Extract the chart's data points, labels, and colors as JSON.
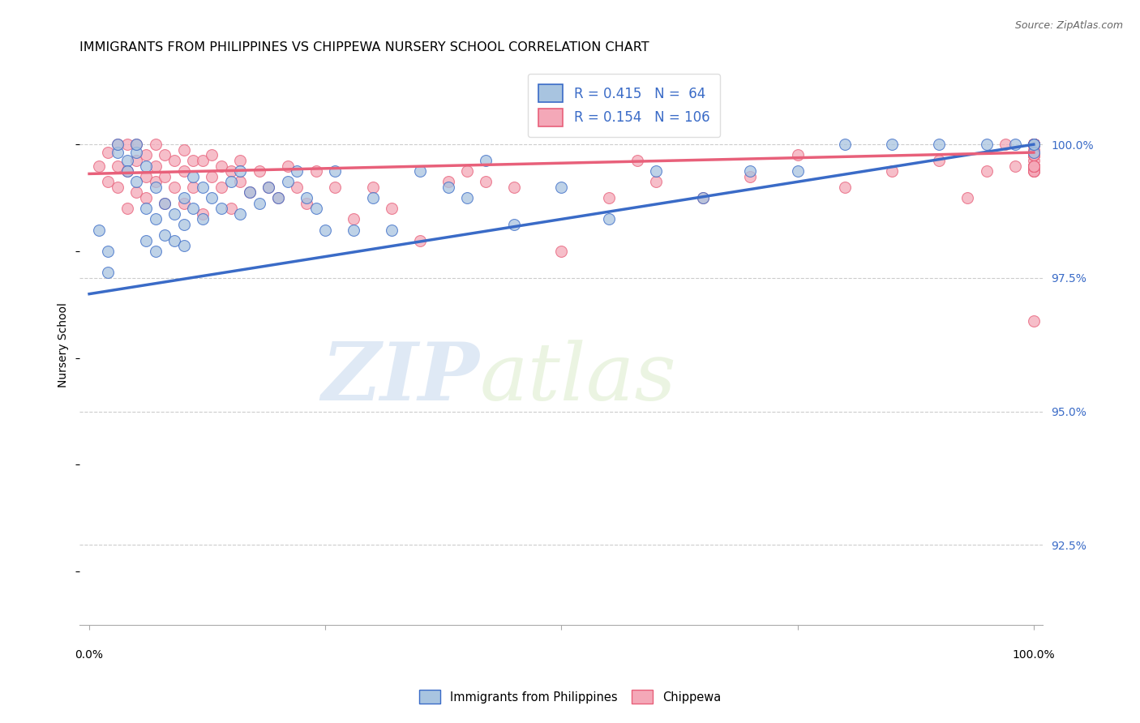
{
  "title": "IMMIGRANTS FROM PHILIPPINES VS CHIPPEWA NURSERY SCHOOL CORRELATION CHART",
  "source": "Source: ZipAtlas.com",
  "ylabel": "Nursery School",
  "legend_label1": "Immigrants from Philippines",
  "legend_label2": "Chippewa",
  "r1": 0.415,
  "n1": 64,
  "r2": 0.154,
  "n2": 106,
  "blue_color": "#a8c4e0",
  "pink_color": "#f4a8b8",
  "line_blue": "#3a6bc7",
  "line_pink": "#e8607a",
  "ytick_values": [
    92.5,
    95.0,
    97.5,
    100.0
  ],
  "ymin": 91.0,
  "ymax": 101.5,
  "xmin": -0.01,
  "xmax": 1.01,
  "blue_line_x0": 0.0,
  "blue_line_y0": 97.2,
  "blue_line_x1": 1.0,
  "blue_line_y1": 100.0,
  "pink_line_x0": 0.0,
  "pink_line_y0": 99.45,
  "pink_line_x1": 1.0,
  "pink_line_y1": 99.85,
  "blue_scatter_x": [
    0.01,
    0.02,
    0.02,
    0.03,
    0.03,
    0.04,
    0.04,
    0.05,
    0.05,
    0.05,
    0.06,
    0.06,
    0.06,
    0.07,
    0.07,
    0.07,
    0.08,
    0.08,
    0.09,
    0.09,
    0.1,
    0.1,
    0.1,
    0.11,
    0.11,
    0.12,
    0.12,
    0.13,
    0.14,
    0.15,
    0.16,
    0.16,
    0.17,
    0.18,
    0.19,
    0.2,
    0.21,
    0.22,
    0.23,
    0.24,
    0.25,
    0.26,
    0.28,
    0.3,
    0.32,
    0.35,
    0.38,
    0.4,
    0.42,
    0.45,
    0.5,
    0.55,
    0.6,
    0.65,
    0.7,
    0.75,
    0.8,
    0.85,
    0.9,
    0.95,
    0.98,
    1.0,
    1.0,
    1.0
  ],
  "blue_scatter_y": [
    98.4,
    98.0,
    97.6,
    99.85,
    100.0,
    99.7,
    99.5,
    99.85,
    100.0,
    99.3,
    99.6,
    98.8,
    98.2,
    99.2,
    98.6,
    98.0,
    98.9,
    98.3,
    98.7,
    98.2,
    99.0,
    98.5,
    98.1,
    99.4,
    98.8,
    99.2,
    98.6,
    99.0,
    98.8,
    99.3,
    99.5,
    98.7,
    99.1,
    98.9,
    99.2,
    99.0,
    99.3,
    99.5,
    99.0,
    98.8,
    98.4,
    99.5,
    98.4,
    99.0,
    98.4,
    99.5,
    99.2,
    99.0,
    99.7,
    98.5,
    99.2,
    98.6,
    99.5,
    99.0,
    99.5,
    99.5,
    100.0,
    100.0,
    100.0,
    100.0,
    100.0,
    100.0,
    99.85,
    100.0
  ],
  "pink_scatter_x": [
    0.01,
    0.02,
    0.02,
    0.03,
    0.03,
    0.03,
    0.04,
    0.04,
    0.04,
    0.05,
    0.05,
    0.05,
    0.06,
    0.06,
    0.06,
    0.07,
    0.07,
    0.07,
    0.08,
    0.08,
    0.08,
    0.09,
    0.09,
    0.1,
    0.1,
    0.1,
    0.11,
    0.11,
    0.12,
    0.12,
    0.13,
    0.13,
    0.14,
    0.14,
    0.15,
    0.15,
    0.16,
    0.16,
    0.17,
    0.18,
    0.19,
    0.2,
    0.21,
    0.22,
    0.23,
    0.24,
    0.26,
    0.28,
    0.3,
    0.32,
    0.35,
    0.38,
    0.4,
    0.42,
    0.45,
    0.5,
    0.55,
    0.58,
    0.6,
    0.65,
    0.7,
    0.75,
    0.8,
    0.85,
    0.9,
    0.93,
    0.95,
    0.97,
    0.98,
    1.0,
    1.0,
    1.0,
    1.0,
    1.0,
    1.0,
    1.0,
    1.0,
    1.0,
    1.0,
    1.0,
    1.0,
    1.0,
    1.0,
    1.0,
    1.0,
    1.0,
    1.0,
    1.0,
    1.0,
    1.0,
    1.0,
    1.0,
    1.0,
    1.0,
    1.0,
    1.0,
    1.0,
    1.0,
    1.0,
    1.0,
    1.0,
    1.0,
    1.0,
    1.0,
    1.0,
    1.0
  ],
  "pink_scatter_y": [
    99.6,
    99.85,
    99.3,
    100.0,
    99.6,
    99.2,
    100.0,
    99.5,
    98.8,
    99.7,
    100.0,
    99.1,
    99.4,
    99.8,
    99.0,
    99.6,
    100.0,
    99.3,
    99.8,
    99.4,
    98.9,
    99.7,
    99.2,
    99.9,
    98.9,
    99.5,
    99.7,
    99.2,
    99.7,
    98.7,
    99.4,
    99.8,
    99.2,
    99.6,
    99.5,
    98.8,
    99.3,
    99.7,
    99.1,
    99.5,
    99.2,
    99.0,
    99.6,
    99.2,
    98.9,
    99.5,
    99.2,
    98.6,
    99.2,
    98.8,
    98.2,
    99.3,
    99.5,
    99.3,
    99.2,
    98.0,
    99.0,
    99.7,
    99.3,
    99.0,
    99.4,
    99.8,
    99.2,
    99.5,
    99.7,
    99.0,
    99.5,
    100.0,
    99.6,
    100.0,
    99.6,
    100.0,
    99.8,
    100.0,
    99.5,
    100.0,
    99.8,
    100.0,
    99.6,
    100.0,
    99.5,
    99.8,
    100.0,
    99.7,
    99.5,
    100.0,
    99.8,
    96.7,
    99.9,
    100.0,
    99.6,
    100.0,
    100.0,
    99.8,
    99.6,
    100.0,
    99.8,
    100.0,
    99.6,
    100.0,
    99.8,
    99.6,
    100.0,
    100.0,
    100.0,
    100.0
  ],
  "watermark_zip": "ZIP",
  "watermark_atlas": "atlas",
  "title_fontsize": 11.5,
  "axis_label_fontsize": 10,
  "tick_fontsize": 10,
  "legend_fontsize": 12,
  "source_fontsize": 9
}
